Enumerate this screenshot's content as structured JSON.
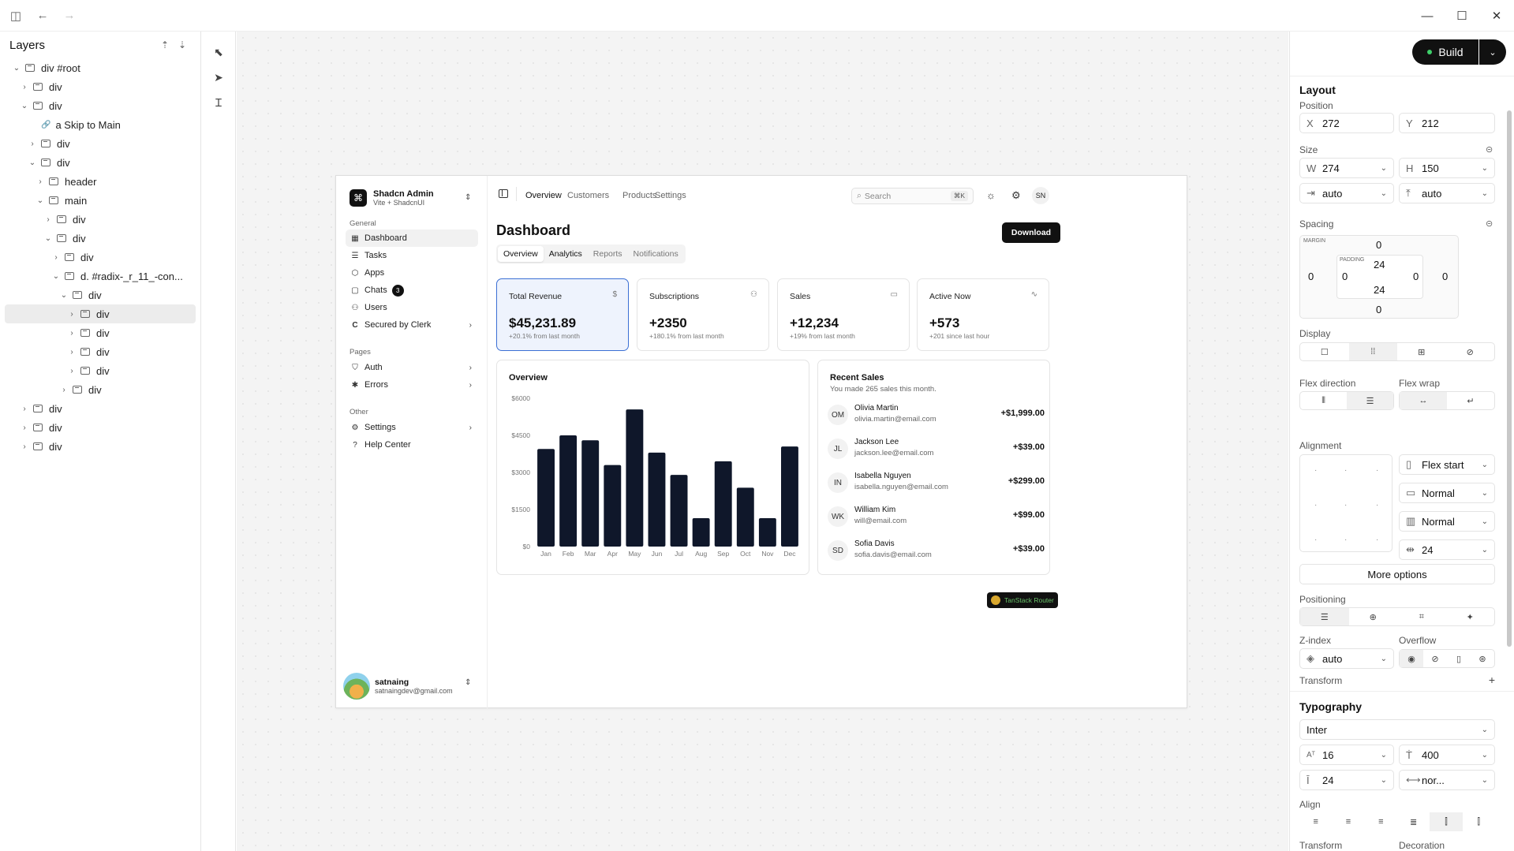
{
  "layers": {
    "title": "Layers",
    "tree": [
      {
        "label": "div #root",
        "depth": 0,
        "chev": "v"
      },
      {
        "label": "div",
        "depth": 1,
        "chev": ">"
      },
      {
        "label": "div",
        "depth": 1,
        "chev": "v"
      },
      {
        "label": "a  Skip to Main",
        "depth": 2,
        "chev": "",
        "link": true
      },
      {
        "label": "div",
        "depth": 2,
        "chev": ">"
      },
      {
        "label": "div",
        "depth": 2,
        "chev": "v"
      },
      {
        "label": "header",
        "depth": 3,
        "chev": ">"
      },
      {
        "label": "main",
        "depth": 3,
        "chev": "v"
      },
      {
        "label": "div",
        "depth": 4,
        "chev": ">"
      },
      {
        "label": "div",
        "depth": 4,
        "chev": "v"
      },
      {
        "label": "div",
        "depth": 5,
        "chev": ">"
      },
      {
        "label": "d. #radix-_r_11_-con...",
        "depth": 5,
        "chev": "v"
      },
      {
        "label": "div",
        "depth": 6,
        "chev": "v"
      },
      {
        "label": "div",
        "depth": 7,
        "chev": ">",
        "selected": true
      },
      {
        "label": "div",
        "depth": 7,
        "chev": ">"
      },
      {
        "label": "div",
        "depth": 7,
        "chev": ">"
      },
      {
        "label": "div",
        "depth": 7,
        "chev": ">"
      },
      {
        "label": "div",
        "depth": 6,
        "chev": ">"
      },
      {
        "label": "div",
        "depth": 1,
        "chev": ">"
      },
      {
        "label": "div",
        "depth": 1,
        "chev": ">"
      },
      {
        "label": "div",
        "depth": 1,
        "chev": ">"
      }
    ]
  },
  "app": {
    "brand_title": "Shadcn Admin",
    "brand_sub": "Vite + ShadcnUI",
    "groups": {
      "general": "General",
      "pages": "Pages",
      "other": "Other"
    },
    "nav": {
      "dashboard": "Dashboard",
      "tasks": "Tasks",
      "apps": "Apps",
      "chats": "Chats",
      "chats_badge": "3",
      "users": "Users",
      "clerk": "Secured by Clerk",
      "auth": "Auth",
      "errors": "Errors",
      "settings": "Settings",
      "help": "Help Center"
    },
    "user": {
      "name": "satnaing",
      "email": "satnaingdev@gmail.com"
    },
    "topnav": [
      "Overview",
      "Customers",
      "Products",
      "Settings"
    ],
    "search_placeholder": "Search",
    "search_kbd": "⌘K",
    "initials": "SN",
    "page_title": "Dashboard",
    "download": "Download",
    "tabs": [
      "Overview",
      "Analytics",
      "Reports",
      "Notifications"
    ],
    "cards": [
      {
        "title": "Total Revenue",
        "icon": "$",
        "value": "$45,231.89",
        "sub": "+20.1% from last month"
      },
      {
        "title": "Subscriptions",
        "icon": "⚇",
        "value": "+2350",
        "sub": "+180.1% from last month"
      },
      {
        "title": "Sales",
        "icon": "▭",
        "value": "+12,234",
        "sub": "+19% from last month"
      },
      {
        "title": "Active Now",
        "icon": "∿",
        "value": "+573",
        "sub": "+201 since last hour"
      }
    ],
    "overview_title": "Overview",
    "recent": {
      "title": "Recent Sales",
      "subtitle": "You made 265 sales this month.",
      "items": [
        {
          "initials": "OM",
          "name": "Olivia Martin",
          "email": "olivia.martin@email.com",
          "amount": "+$1,999.00"
        },
        {
          "initials": "JL",
          "name": "Jackson Lee",
          "email": "jackson.lee@email.com",
          "amount": "+$39.00"
        },
        {
          "initials": "IN",
          "name": "Isabella Nguyen",
          "email": "isabella.nguyen@email.com",
          "amount": "+$299.00"
        },
        {
          "initials": "WK",
          "name": "William Kim",
          "email": "will@email.com",
          "amount": "+$99.00"
        },
        {
          "initials": "SD",
          "name": "Sofia Davis",
          "email": "sofia.davis@email.com",
          "amount": "+$39.00"
        }
      ]
    },
    "tanstack": "TanStack Router"
  },
  "chart_data": {
    "type": "bar",
    "categories": [
      "Jan",
      "Feb",
      "Mar",
      "Apr",
      "May",
      "Jun",
      "Jul",
      "Aug",
      "Sep",
      "Oct",
      "Nov",
      "Dec"
    ],
    "values": [
      3950,
      4500,
      4300,
      3300,
      5550,
      3800,
      2900,
      1150,
      3450,
      2380,
      1150,
      4050
    ],
    "yticks": [
      "$0",
      "$1500",
      "$3000",
      "$4500",
      "$6000"
    ],
    "ylim": [
      0,
      6000
    ],
    "bar_color": "#0f172a"
  },
  "props": {
    "build": "Build",
    "layout": "Layout",
    "position": "Position",
    "x_label": "X",
    "x": "272",
    "y_label": "Y",
    "y": "212",
    "size": "Size",
    "w_label": "W",
    "w": "274",
    "h_label": "H",
    "h": "150",
    "minw": "auto",
    "minh": "auto",
    "spacing": "Spacing",
    "margin_label": "MARGIN",
    "padding_label": "PADDING",
    "margin": {
      "top": "0",
      "right": "0",
      "bottom": "0",
      "left": "0"
    },
    "padding": {
      "top": "24",
      "right": "0",
      "bottom": "24",
      "left": "0"
    },
    "display": "Display",
    "flex_direction": "Flex direction",
    "flex_wrap": "Flex wrap",
    "alignment": "Alignment",
    "justify": "Flex start",
    "align_items": "Normal",
    "align_content": "Normal",
    "gap": "24",
    "more_options": "More options",
    "positioning": "Positioning",
    "zindex": "Z-index",
    "zindex_val": "auto",
    "overflow": "Overflow",
    "transform": "Transform",
    "typography": "Typography",
    "font": "Inter",
    "font_size": "16",
    "font_weight": "400",
    "line_height": "24",
    "letter_spacing": "nor...",
    "align": "Align",
    "transform2": "Transform",
    "decoration": "Decoration"
  }
}
